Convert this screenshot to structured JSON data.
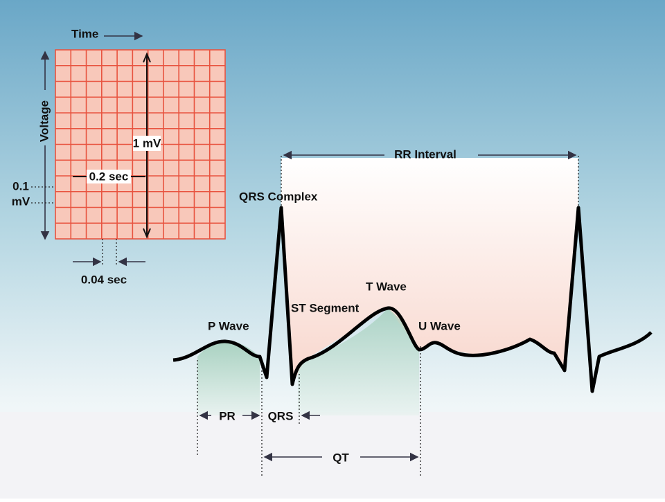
{
  "grid": {
    "time_label": "Time",
    "voltage_label": "Voltage",
    "amplitude_label": "1 mV",
    "box_duration_label": "0.2 sec",
    "small_box_voltage_label": [
      "0.1",
      "mV"
    ],
    "small_box_duration_label": "0.04 sec"
  },
  "waveform": {
    "rr_interval": "RR Interval",
    "qrs_complex": "QRS Complex",
    "st_segment": "ST Segment",
    "t_wave": "T Wave",
    "p_wave": "P Wave",
    "u_wave": "U Wave"
  },
  "intervals": {
    "pr": "PR",
    "qrs": "QRS",
    "qt": "QT"
  }
}
